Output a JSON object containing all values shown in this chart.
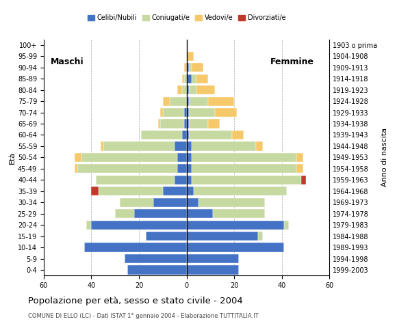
{
  "age_groups": [
    "0-4",
    "5-9",
    "10-14",
    "15-19",
    "20-24",
    "25-29",
    "30-34",
    "35-39",
    "40-44",
    "45-49",
    "50-54",
    "55-59",
    "60-64",
    "65-69",
    "70-74",
    "75-79",
    "80-84",
    "85-89",
    "90-94",
    "95-99",
    "100+"
  ],
  "birth_years": [
    "1999-2003",
    "1994-1998",
    "1989-1993",
    "1984-1988",
    "1979-1983",
    "1974-1978",
    "1969-1973",
    "1964-1968",
    "1959-1963",
    "1954-1958",
    "1949-1953",
    "1944-1948",
    "1939-1943",
    "1934-1938",
    "1929-1933",
    "1924-1928",
    "1919-1923",
    "1914-1918",
    "1909-1913",
    "1904-1908",
    "1903 o prima"
  ],
  "male": {
    "celibi": [
      25,
      26,
      43,
      17,
      40,
      22,
      14,
      10,
      5,
      4,
      4,
      5,
      2,
      1,
      1,
      0,
      0,
      0,
      0,
      0,
      0
    ],
    "coniugati": [
      0,
      0,
      0,
      0,
      2,
      8,
      14,
      27,
      33,
      42,
      40,
      30,
      17,
      10,
      9,
      7,
      2,
      1,
      0,
      0,
      0
    ],
    "vedovi": [
      0,
      0,
      0,
      0,
      0,
      0,
      0,
      0,
      0,
      1,
      3,
      1,
      0,
      1,
      1,
      3,
      2,
      1,
      1,
      0,
      0
    ],
    "divorziati": [
      0,
      0,
      0,
      0,
      0,
      0,
      0,
      3,
      0,
      0,
      0,
      0,
      0,
      0,
      0,
      0,
      0,
      0,
      0,
      0,
      0
    ]
  },
  "female": {
    "nubili": [
      22,
      22,
      41,
      30,
      41,
      11,
      5,
      3,
      2,
      2,
      2,
      2,
      1,
      1,
      1,
      1,
      1,
      2,
      1,
      0,
      0
    ],
    "coniugate": [
      0,
      0,
      0,
      2,
      2,
      22,
      28,
      39,
      46,
      44,
      44,
      27,
      18,
      8,
      11,
      8,
      3,
      2,
      1,
      0,
      0
    ],
    "vedove": [
      0,
      0,
      0,
      0,
      0,
      0,
      0,
      0,
      0,
      3,
      3,
      3,
      5,
      5,
      9,
      11,
      8,
      5,
      5,
      3,
      0
    ],
    "divorziate": [
      0,
      0,
      0,
      0,
      0,
      0,
      0,
      0,
      2,
      0,
      0,
      0,
      0,
      0,
      0,
      0,
      0,
      0,
      0,
      0,
      0
    ]
  },
  "colors": {
    "celibi": "#4472c4",
    "coniugati": "#c5d9a0",
    "vedovi": "#f5c96a",
    "divorziati": "#c0392b"
  },
  "xlim": 60,
  "title": "Popolazione per età, sesso e stato civile - 2004",
  "subtitle": "COMUNE DI ELLO (LC) - Dati ISTAT 1° gennaio 2004 - Elaborazione TUTTITALIA.IT",
  "legend_labels": [
    "Celibi/Nubili",
    "Coniugati/e",
    "Vedovi/e",
    "Divorziati/e"
  ],
  "label_maschi": "Maschi",
  "label_femmine": "Femmine",
  "label_eta": "Età",
  "label_anno": "Anno di nascita",
  "bg_color": "#ffffff",
  "bar_height": 0.8
}
